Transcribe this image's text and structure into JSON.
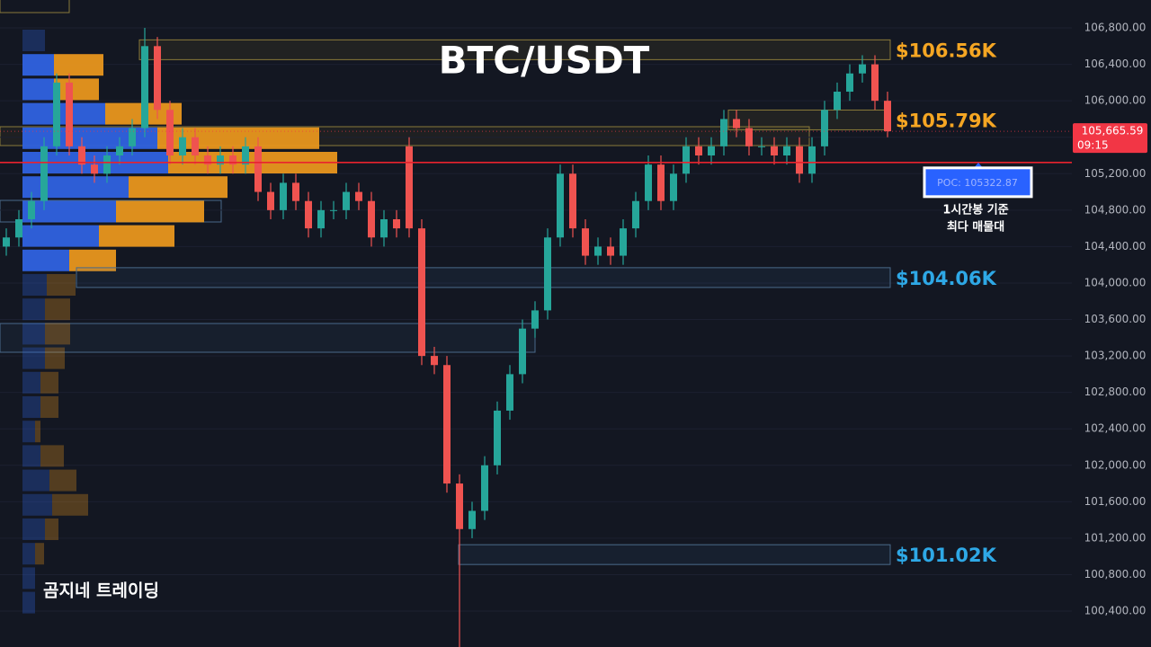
{
  "chart_data": {
    "type": "candlestick",
    "title": "BTC/USDT",
    "watermark": "곰지네 트레이딩",
    "up_color": "#26a69a",
    "down_color": "#ef5350",
    "open": [
      104400,
      104500,
      104700,
      104900,
      105500,
      106200,
      105500,
      105300,
      105200,
      105400,
      105500,
      105700,
      106600,
      105900,
      105400,
      105600,
      105400,
      105300,
      105400,
      105300,
      105500,
      105000,
      104800,
      105100,
      104900,
      104600,
      104800,
      104800,
      105000,
      104900,
      104500,
      104700,
      105500,
      104600,
      103200,
      103100,
      101800,
      101300,
      101500,
      102000,
      102600,
      103000,
      103500,
      103700,
      104500,
      105200,
      104600,
      104300,
      104400,
      104300,
      104600,
      104900,
      105300,
      104900,
      105200,
      105500,
      105400,
      105500,
      105800,
      105700,
      105500,
      105500,
      105400,
      105500,
      105200,
      105500,
      105900,
      106100,
      106300,
      106400,
      106000
    ],
    "high": [
      104600,
      104800,
      105000,
      105600,
      106300,
      106300,
      105600,
      105400,
      105500,
      105600,
      105800,
      106800,
      106700,
      106000,
      105700,
      105700,
      105500,
      105500,
      105500,
      105600,
      105600,
      105100,
      105200,
      105200,
      105000,
      104900,
      104900,
      105100,
      105100,
      105000,
      104800,
      104800,
      105600,
      104700,
      103300,
      103200,
      101900,
      101600,
      102100,
      102700,
      103100,
      103600,
      103800,
      104600,
      105300,
      105300,
      104700,
      104500,
      104500,
      104700,
      105000,
      105400,
      105400,
      105300,
      105600,
      105600,
      105600,
      105900,
      105900,
      105800,
      105600,
      105600,
      105600,
      105600,
      105600,
      106000,
      106200,
      106400,
      106500,
      106500,
      106100
    ],
    "low": [
      104300,
      104400,
      104600,
      104800,
      105400,
      105400,
      105200,
      105100,
      105100,
      105300,
      105400,
      105600,
      105800,
      105300,
      105300,
      105300,
      105200,
      105200,
      105200,
      105200,
      104900,
      104700,
      104700,
      104800,
      104500,
      104500,
      104700,
      104700,
      104800,
      104400,
      104400,
      104500,
      104500,
      103100,
      103000,
      101700,
      100000,
      101200,
      101400,
      101900,
      102500,
      102900,
      103400,
      103600,
      104400,
      104500,
      104200,
      104200,
      104200,
      104200,
      104500,
      104800,
      104800,
      104800,
      105100,
      105300,
      105300,
      105400,
      105600,
      105400,
      105400,
      105300,
      105300,
      105100,
      105100,
      105400,
      105800,
      106000,
      106200,
      105900,
      105600
    ],
    "close": [
      104500,
      104700,
      104900,
      105500,
      106200,
      105500,
      105300,
      105200,
      105400,
      105500,
      105700,
      106600,
      105900,
      105400,
      105600,
      105400,
      105300,
      105400,
      105300,
      105500,
      105000,
      104800,
      105100,
      104900,
      104600,
      104800,
      104800,
      105000,
      104900,
      104500,
      104700,
      104600,
      104600,
      103200,
      103100,
      101800,
      101300,
      101500,
      102000,
      102600,
      103000,
      103500,
      103700,
      104500,
      105200,
      104600,
      104300,
      104400,
      104300,
      104600,
      104900,
      105300,
      104900,
      105200,
      105500,
      105400,
      105500,
      105800,
      105700,
      105500,
      105500,
      105400,
      105500,
      105200,
      105500,
      105900,
      106100,
      106300,
      106400,
      106000,
      105665.59
    ],
    "ylim": [
      100006,
      107106
    ],
    "yticks": [
      {
        "value": 100400,
        "label": "100,400.00"
      },
      {
        "value": 100800,
        "label": "100,800.00"
      },
      {
        "value": 101200,
        "label": "101,200.00"
      },
      {
        "value": 101600,
        "label": "101,600.00"
      },
      {
        "value": 102000,
        "label": "102,000.00"
      },
      {
        "value": 102400,
        "label": "102,400.00"
      },
      {
        "value": 102800,
        "label": "102,800.00"
      },
      {
        "value": 103200,
        "label": "103,200.00"
      },
      {
        "value": 103600,
        "label": "103,600.00"
      },
      {
        "value": 104000,
        "label": "104,000.00"
      },
      {
        "value": 104400,
        "label": "104,400.00"
      },
      {
        "value": 104800,
        "label": "104,800.00"
      },
      {
        "value": 105200,
        "label": "105,200.00"
      },
      {
        "value": 105600,
        "label": "105,600.00"
      },
      {
        "value": 106000,
        "label": "106,000.00"
      },
      {
        "value": 106400,
        "label": "106,400.00"
      },
      {
        "value": 106800,
        "label": "106,800.00"
      }
    ],
    "grid": true,
    "levels": [
      {
        "label": "$106.56K",
        "value": 106560,
        "color": "#f5a623"
      },
      {
        "label": "$105.79K",
        "value": 105790,
        "color": "#f5a623"
      },
      {
        "label": "$104.06K",
        "value": 104060,
        "color": "#2ea8e6"
      },
      {
        "label": "$101.02K",
        "value": 101020,
        "color": "#2ea8e6"
      }
    ],
    "poc": {
      "label": "POC: 105322.87",
      "value": 105322.87,
      "color": "#e8232e",
      "note": [
        "1시간봉 기준",
        "최다 매물대"
      ]
    },
    "last_price": {
      "label": "105,665.59",
      "value": 105665.59,
      "time": "09:15",
      "color": "#f23645"
    },
    "volume_profile": {
      "buy": [
        25,
        35,
        35,
        92,
        150,
        162,
        118,
        104,
        85,
        52,
        27,
        25,
        25,
        25,
        20,
        20,
        14,
        20,
        30,
        33,
        25,
        14,
        14,
        14
      ],
      "sell": [
        0,
        55,
        50,
        85,
        180,
        188,
        110,
        98,
        84,
        52,
        32,
        28,
        28,
        22,
        20,
        20,
        6,
        26,
        30,
        40,
        15,
        10,
        0,
        0
      ],
      "buy_color": "#2f62e0",
      "sell_color": "#e8961e"
    }
  }
}
